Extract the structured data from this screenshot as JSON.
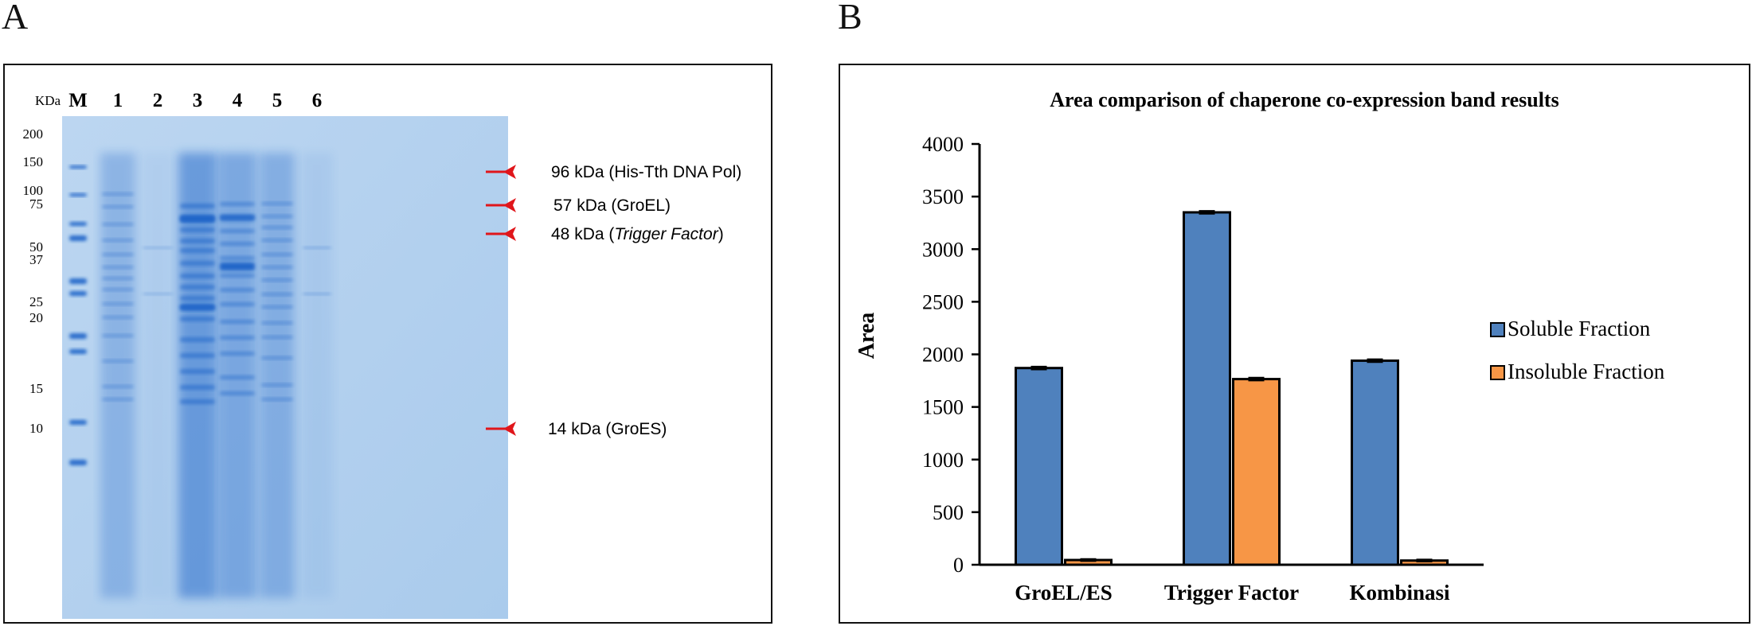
{
  "panel_a": {
    "label": "A",
    "unit_label": "KDa",
    "lane_labels": [
      "M",
      "1",
      "2",
      "3",
      "4",
      "5",
      "6"
    ],
    "marker_ladder": [
      "200",
      "150",
      "100",
      "75",
      "50",
      "37",
      "25",
      "20",
      "15",
      "10"
    ],
    "annotations": [
      {
        "text_before": "96 kDa (His-Tth DNA Pol)",
        "italic": "",
        "text_after": ""
      },
      {
        "text_before": "57 kDa (GroEL)",
        "italic": "",
        "text_after": ""
      },
      {
        "text_before": "48 kDa (",
        "italic": "Trigger Factor",
        "text_after": ")"
      },
      {
        "text_before": "14 kDa (GroES)",
        "italic": "",
        "text_after": ""
      }
    ],
    "colors": {
      "gel": "#b7d2ee",
      "band": "#1f63c8",
      "arrow": "#e0161b"
    }
  },
  "panel_b": {
    "label": "B"
  },
  "chart_data": {
    "type": "bar",
    "title": "Area comparison of chaperone co-expression band results",
    "xlabel": "",
    "ylabel": "Area",
    "categories": [
      "GroEL/ES",
      "Trigger Factor",
      "Kombinasi"
    ],
    "series": [
      {
        "name": "Soluble Fraction",
        "values": [
          1870,
          3350,
          1940
        ],
        "errors": [
          12,
          12,
          12
        ],
        "color": "#4f81bd"
      },
      {
        "name": "Insoluble Fraction",
        "values": [
          45,
          1765,
          40
        ],
        "errors": [
          8,
          12,
          8
        ],
        "color": "#f79646"
      }
    ],
    "ylim": [
      0,
      4000
    ],
    "yticks": [
      0,
      500,
      1000,
      1500,
      2000,
      2500,
      3000,
      3500,
      4000
    ],
    "grid": false,
    "legend_position": "right"
  }
}
